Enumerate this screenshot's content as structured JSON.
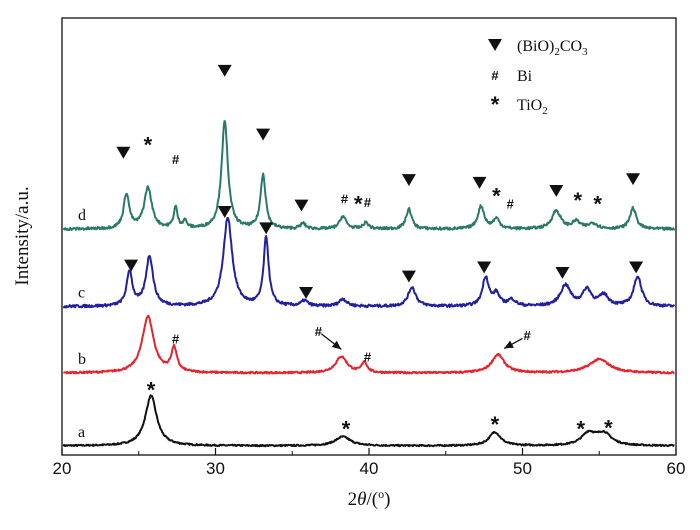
{
  "chart_data": {
    "type": "line",
    "xlabel_parts": [
      "2",
      "θ",
      "/(",
      "o",
      ")"
    ],
    "ylabel": "Intensity/a.u.",
    "xlim": [
      20,
      60
    ],
    "xticks": [
      "20",
      "30",
      "40",
      "50",
      "60"
    ],
    "yticks_shown": false,
    "grid": false,
    "legend_position": "top-right",
    "legend": [
      {
        "symbol": "triangle-down",
        "label_parts": [
          "(BiO)",
          "2",
          "CO",
          "3"
        ]
      },
      {
        "symbol": "#",
        "label_parts": [
          "Bi"
        ]
      },
      {
        "symbol": "*",
        "label_parts": [
          "TiO",
          "2"
        ]
      }
    ],
    "series": [
      {
        "name": "a",
        "color": "#111111",
        "baseline": 10,
        "noise": 0.8,
        "peaks": [
          {
            "x": 25.8,
            "h": 55,
            "w": 0.45
          },
          {
            "x": 38.3,
            "h": 10,
            "w": 0.6
          },
          {
            "x": 48.2,
            "h": 15,
            "w": 0.45
          },
          {
            "x": 54.3,
            "h": 13,
            "w": 0.55
          },
          {
            "x": 55.3,
            "h": 13,
            "w": 0.6
          }
        ],
        "markers": [
          {
            "type": "*",
            "x": 25.8,
            "y": 72
          },
          {
            "type": "*",
            "x": 38.5,
            "y": 29
          },
          {
            "type": "*",
            "x": 48.2,
            "y": 34
          },
          {
            "type": "*",
            "x": 53.8,
            "y": 29
          },
          {
            "type": "*",
            "x": 55.6,
            "y": 30
          }
        ]
      },
      {
        "name": "b",
        "color": "#e8222b",
        "baseline": 90,
        "noise": 1.0,
        "peaks": [
          {
            "x": 25.6,
            "h": 62,
            "w": 0.45
          },
          {
            "x": 27.3,
            "h": 26,
            "w": 0.22
          },
          {
            "x": 38.2,
            "h": 18,
            "w": 0.45
          },
          {
            "x": 39.7,
            "h": 12,
            "w": 0.2
          },
          {
            "x": 48.4,
            "h": 20,
            "w": 0.5
          },
          {
            "x": 55.0,
            "h": 15,
            "w": 0.8
          }
        ],
        "markers": [
          {
            "type": "#",
            "x": 27.4,
            "y": 128
          },
          {
            "type": "#",
            "x": 36.7,
            "y": 136
          },
          {
            "type": "#",
            "x": 39.9,
            "y": 108
          },
          {
            "type": "#",
            "x": 50.3,
            "y": 132
          }
        ],
        "arrows": [
          {
            "from": [
              36.9,
              133
            ],
            "to": [
              38.2,
              116
            ]
          },
          {
            "from": [
              50.0,
              128
            ],
            "to": [
              48.8,
              117
            ]
          }
        ]
      },
      {
        "name": "c",
        "color": "#2020a0",
        "baseline": 163,
        "noise": 1.5,
        "peaks": [
          {
            "x": 24.4,
            "h": 38,
            "w": 0.22
          },
          {
            "x": 25.7,
            "h": 55,
            "w": 0.28
          },
          {
            "x": 30.8,
            "h": 97,
            "w": 0.35
          },
          {
            "x": 33.3,
            "h": 75,
            "w": 0.2
          },
          {
            "x": 35.8,
            "h": 6,
            "w": 0.25
          },
          {
            "x": 38.3,
            "h": 8,
            "w": 0.3
          },
          {
            "x": 42.8,
            "h": 21,
            "w": 0.3
          },
          {
            "x": 47.6,
            "h": 32,
            "w": 0.25
          },
          {
            "x": 48.3,
            "h": 13,
            "w": 0.25
          },
          {
            "x": 49.3,
            "h": 7,
            "w": 0.3
          },
          {
            "x": 52.8,
            "h": 23,
            "w": 0.4
          },
          {
            "x": 54.2,
            "h": 18,
            "w": 0.35
          },
          {
            "x": 55.3,
            "h": 12,
            "w": 0.35
          },
          {
            "x": 57.5,
            "h": 33,
            "w": 0.3
          }
        ],
        "markers": [
          {
            "type": "tri",
            "x": 24.5,
            "y": 208
          },
          {
            "type": "tri",
            "x": 30.6,
            "y": 267
          },
          {
            "type": "tri",
            "x": 33.3,
            "y": 249
          },
          {
            "type": "tri",
            "x": 35.9,
            "y": 178
          },
          {
            "type": "tri",
            "x": 42.6,
            "y": 196
          },
          {
            "type": "tri",
            "x": 47.5,
            "y": 206
          },
          {
            "type": "tri",
            "x": 52.6,
            "y": 200
          },
          {
            "type": "tri",
            "x": 57.4,
            "y": 206
          }
        ]
      },
      {
        "name": "d",
        "color": "#2a7a68",
        "baseline": 248,
        "noise": 1.5,
        "peaks": [
          {
            "x": 24.2,
            "h": 38,
            "w": 0.22
          },
          {
            "x": 25.6,
            "h": 45,
            "w": 0.3
          },
          {
            "x": 27.4,
            "h": 23,
            "w": 0.15
          },
          {
            "x": 28.0,
            "h": 8,
            "w": 0.15
          },
          {
            "x": 30.6,
            "h": 118,
            "w": 0.25
          },
          {
            "x": 33.1,
            "h": 60,
            "w": 0.2
          },
          {
            "x": 35.7,
            "h": 6,
            "w": 0.2
          },
          {
            "x": 38.3,
            "h": 14,
            "w": 0.25
          },
          {
            "x": 39.8,
            "h": 7,
            "w": 0.2
          },
          {
            "x": 42.6,
            "h": 22,
            "w": 0.22
          },
          {
            "x": 47.3,
            "h": 25,
            "w": 0.25
          },
          {
            "x": 48.3,
            "h": 11,
            "w": 0.25
          },
          {
            "x": 52.2,
            "h": 20,
            "w": 0.35
          },
          {
            "x": 53.5,
            "h": 8,
            "w": 0.3
          },
          {
            "x": 54.6,
            "h": 6,
            "w": 0.35
          },
          {
            "x": 57.2,
            "h": 23,
            "w": 0.25
          }
        ],
        "markers": [
          {
            "type": "tri",
            "x": 24.0,
            "y": 332
          },
          {
            "type": "*",
            "x": 25.6,
            "y": 341
          },
          {
            "type": "#",
            "x": 27.4,
            "y": 325
          },
          {
            "type": "tri",
            "x": 30.6,
            "y": 422
          },
          {
            "type": "tri",
            "x": 33.1,
            "y": 352
          },
          {
            "type": "tri",
            "x": 35.6,
            "y": 274
          },
          {
            "type": "#",
            "x": 38.4,
            "y": 282
          },
          {
            "type": "*",
            "x": 39.3,
            "y": 276
          },
          {
            "type": "#",
            "x": 39.9,
            "y": 278
          },
          {
            "type": "tri",
            "x": 42.6,
            "y": 302
          },
          {
            "type": "tri",
            "x": 47.2,
            "y": 299
          },
          {
            "type": "*",
            "x": 48.3,
            "y": 285
          },
          {
            "type": "#",
            "x": 49.2,
            "y": 276
          },
          {
            "type": "tri",
            "x": 52.2,
            "y": 290
          },
          {
            "type": "*",
            "x": 53.6,
            "y": 280
          },
          {
            "type": "*",
            "x": 54.9,
            "y": 276
          },
          {
            "type": "tri",
            "x": 57.2,
            "y": 303
          }
        ]
      }
    ]
  }
}
